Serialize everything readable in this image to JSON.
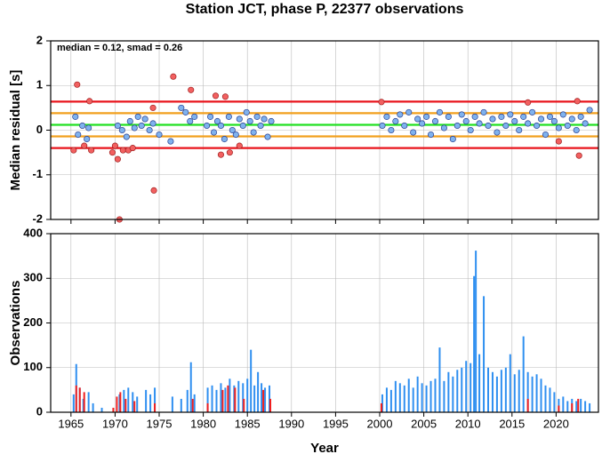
{
  "chart_data": [
    {
      "type": "scatter",
      "title": "Station JCT, phase P, 22377 observations",
      "ylabel": "Median residual [s]",
      "annotation": "median = 0.12, smad = 0.26",
      "xlim": [
        1962.7,
        2024.8
      ],
      "xticks": [
        1965,
        1970,
        1975,
        1980,
        1985,
        1990,
        1995,
        2000,
        2005,
        2010,
        2015,
        2020
      ],
      "ylim": [
        -2,
        2
      ],
      "yticks": [
        2,
        1,
        0,
        -1,
        -2
      ],
      "grid": true,
      "hlines": [
        {
          "value": 0.64,
          "color": "#e8141c"
        },
        {
          "value": -0.4,
          "color": "#e8141c"
        },
        {
          "value": 0.38,
          "color": "#f2a01e"
        },
        {
          "value": -0.14,
          "color": "#f2a01e"
        },
        {
          "value": 0.12,
          "color": "#22e022"
        }
      ],
      "series": [
        {
          "color": "#7fb2ee",
          "edge": "#2a3f8f",
          "x": [
            1965.5,
            1965.8,
            1966.3,
            1966.8,
            1967,
            1970.3,
            1970.8,
            1971.3,
            1971.7,
            1972.2,
            1972.6,
            1973,
            1973.4,
            1973.9,
            1974.3,
            1975,
            1976.3,
            1977.5,
            1978,
            1978.5,
            1979,
            1980.4,
            1980.8,
            1981.2,
            1981.6,
            1982,
            1982.4,
            1982.9,
            1983.3,
            1983.7,
            1984.1,
            1984.5,
            1984.9,
            1985.3,
            1985.7,
            1986.1,
            1986.5,
            1986.9,
            1987.3,
            1987.7,
            2000.3,
            2000.8,
            2001.3,
            2001.8,
            2002.3,
            2002.8,
            2003.3,
            2003.8,
            2004.3,
            2004.8,
            2005.3,
            2005.8,
            2006.3,
            2006.8,
            2007.3,
            2007.8,
            2008.3,
            2008.8,
            2009.3,
            2009.8,
            2010.3,
            2010.8,
            2011.3,
            2011.8,
            2012.3,
            2012.8,
            2013.3,
            2013.8,
            2014.3,
            2014.8,
            2015.3,
            2015.8,
            2016.3,
            2016.8,
            2017.3,
            2017.8,
            2018.3,
            2018.8,
            2019.3,
            2019.8,
            2020.3,
            2020.8,
            2021.3,
            2021.8,
            2022.3,
            2022.8,
            2023.3,
            2023.8
          ],
          "values": [
            0.3,
            -0.1,
            0.1,
            -0.2,
            0.05,
            0.1,
            0.0,
            -0.15,
            0.2,
            0.05,
            0.3,
            0.1,
            0.25,
            0.0,
            0.15,
            -0.1,
            -0.25,
            0.5,
            0.4,
            0.2,
            0.3,
            0.1,
            0.3,
            -0.05,
            0.2,
            0.1,
            -0.2,
            0.3,
            0.0,
            -0.1,
            0.25,
            0.1,
            0.4,
            0.2,
            -0.05,
            0.3,
            0.1,
            0.25,
            -0.15,
            0.2,
            0.1,
            0.3,
            0.0,
            0.2,
            0.35,
            0.1,
            0.4,
            -0.05,
            0.25,
            0.15,
            0.3,
            -0.1,
            0.2,
            0.4,
            0.05,
            0.3,
            -0.2,
            0.1,
            0.35,
            0.2,
            0.0,
            0.3,
            0.15,
            0.4,
            0.1,
            0.25,
            -0.05,
            0.3,
            0.1,
            0.35,
            0.2,
            0.0,
            0.3,
            0.15,
            0.4,
            0.1,
            0.25,
            -0.1,
            0.3,
            0.2,
            0.05,
            0.35,
            0.1,
            0.25,
            0.0,
            0.3,
            0.15,
            0.45
          ]
        },
        {
          "color": "#f26060",
          "edge": "#a02020",
          "x": [
            1965.3,
            1965.7,
            1966.5,
            1967.1,
            1967.3,
            1969.7,
            1970,
            1970.3,
            1970.5,
            1970.9,
            1971.5,
            1972,
            1974.3,
            1974.4,
            1976.6,
            1978.6,
            1981.4,
            1982,
            1982.5,
            1983,
            1984.1,
            2000.2,
            2016.8,
            2020.3,
            2022.4,
            2022.6
          ],
          "values": [
            -0.45,
            1.02,
            -0.35,
            0.65,
            -0.45,
            -0.5,
            -0.35,
            -0.65,
            -2.0,
            -0.45,
            -0.45,
            -0.4,
            0.5,
            -1.35,
            1.2,
            0.9,
            0.77,
            -0.55,
            0.75,
            -0.5,
            -0.35,
            0.63,
            0.62,
            -0.25,
            0.65,
            -0.57
          ]
        }
      ]
    },
    {
      "type": "bar",
      "ylabel": "Observations",
      "xlabel": "Year",
      "xlim": [
        1962.7,
        2024.8
      ],
      "xticks": [
        1965,
        1970,
        1975,
        1980,
        1985,
        1990,
        1995,
        2000,
        2005,
        2010,
        2015,
        2020
      ],
      "ylim": [
        0,
        400
      ],
      "yticks": [
        400,
        300,
        200,
        100,
        0
      ],
      "grid": true,
      "series": [
        {
          "color": "#2f8ff0",
          "x": [
            1965.3,
            1965.6,
            1966,
            1966.4,
            1967,
            1967.5,
            1968.5,
            1970.5,
            1971,
            1971.5,
            1972,
            1972.5,
            1973.5,
            1974,
            1974.5,
            1976.5,
            1977.5,
            1978.2,
            1978.6,
            1979,
            1980.5,
            1981,
            1981.5,
            1982,
            1982.5,
            1983,
            1983.5,
            1984,
            1984.5,
            1985,
            1985.4,
            1985.8,
            1986.2,
            1986.6,
            1987,
            1987.5,
            2000.3,
            2000.8,
            2001.3,
            2001.8,
            2002.3,
            2002.8,
            2003.3,
            2003.8,
            2004.3,
            2004.8,
            2005.3,
            2005.8,
            2006.3,
            2006.8,
            2007.3,
            2007.8,
            2008.3,
            2008.8,
            2009.3,
            2009.8,
            2010.3,
            2010.7,
            2010.9,
            2011.3,
            2011.8,
            2012.3,
            2012.8,
            2013.3,
            2013.8,
            2014.3,
            2014.8,
            2015.3,
            2015.8,
            2016.3,
            2016.8,
            2017.3,
            2017.8,
            2018.3,
            2018.8,
            2019.3,
            2019.8,
            2020.3,
            2020.8,
            2021.3,
            2021.8,
            2022.3,
            2022.8,
            2023.3,
            2023.8
          ],
          "values": [
            40,
            108,
            55,
            30,
            45,
            20,
            10,
            40,
            50,
            55,
            45,
            35,
            50,
            40,
            55,
            35,
            30,
            50,
            112,
            40,
            55,
            60,
            50,
            65,
            55,
            75,
            60,
            70,
            65,
            75,
            140,
            60,
            90,
            65,
            55,
            60,
            40,
            55,
            50,
            70,
            65,
            60,
            75,
            55,
            80,
            65,
            60,
            70,
            75,
            145,
            70,
            90,
            80,
            95,
            100,
            115,
            110,
            305,
            362,
            130,
            260,
            100,
            90,
            80,
            95,
            100,
            130,
            85,
            95,
            170,
            90,
            80,
            85,
            75,
            60,
            55,
            45,
            30,
            35,
            25,
            30,
            25,
            30,
            25,
            20
          ]
        },
        {
          "color": "#f02020",
          "x": [
            1965.6,
            1966,
            1966.5,
            1969.8,
            1970.2,
            1970.6,
            1971.2,
            1972.2,
            1974.5,
            1978.8,
            1980.5,
            1982.2,
            1982.8,
            1983.6,
            1984.6,
            1986.8,
            1987.6,
            2000.2,
            2016.8,
            2020.3,
            2021.8,
            2022.5
          ],
          "values": [
            60,
            55,
            45,
            10,
            35,
            45,
            30,
            25,
            20,
            30,
            20,
            50,
            60,
            55,
            30,
            50,
            30,
            20,
            30,
            15,
            20,
            30
          ]
        }
      ]
    }
  ]
}
